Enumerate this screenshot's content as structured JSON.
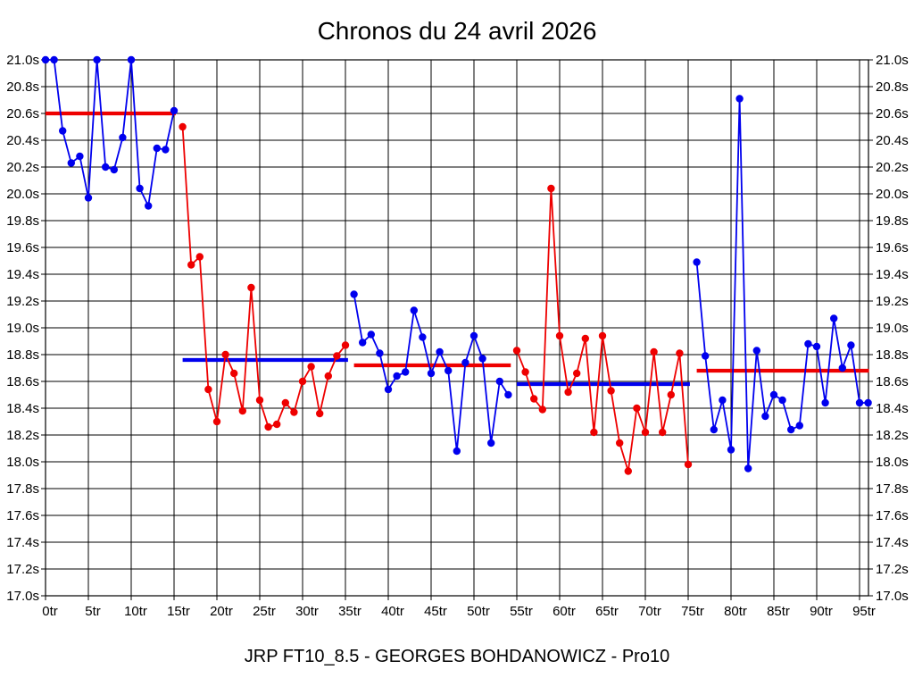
{
  "title": "Chronos du 24 avril 2026",
  "caption": "JRP FT10_8.5 - GEORGES BOHDANOWICZ - Pro10",
  "colors": {
    "blue_series": "#0000EE",
    "red_series": "#EE0000",
    "grid": "#000000",
    "background": "#FFFFFF"
  },
  "chart_data": {
    "type": "line",
    "title": "Chronos du 24 avril 2026",
    "xlabel": "",
    "ylabel": "",
    "x_unit": "tr",
    "y_unit": "s",
    "xlim": [
      0,
      96.25
    ],
    "ylim": [
      17.0,
      21.0
    ],
    "grid": true,
    "legend": "none",
    "x_ticks": {
      "values": [
        0,
        5,
        10,
        15,
        20,
        25,
        30,
        35,
        40,
        45,
        50,
        55,
        60,
        65,
        70,
        75,
        80,
        85,
        90,
        95
      ],
      "labels": [
        "0tr",
        "5tr",
        "10tr",
        "15tr",
        "20tr",
        "25tr",
        "30tr",
        "35tr",
        "40tr",
        "45tr",
        "50tr",
        "55tr",
        "60tr",
        "65tr",
        "70tr",
        "75tr",
        "80tr",
        "85tr",
        "90tr",
        "95tr"
      ]
    },
    "y_ticks": {
      "values": [
        21.0,
        20.8,
        20.6,
        20.4,
        20.2,
        20.0,
        19.8,
        19.6,
        19.4,
        19.2,
        19.0,
        18.8,
        18.6,
        18.4,
        18.2,
        18.0,
        17.8,
        17.6,
        17.4,
        17.2,
        17.0
      ],
      "labels": [
        "21.0s",
        "20.8s",
        "20.6s",
        "20.4s",
        "20.2s",
        "20.0s",
        "19.8s",
        "19.6s",
        "19.4s",
        "19.2s",
        "19.0s",
        "18.8s",
        "18.6s",
        "18.4s",
        "18.2s",
        "18.0s",
        "17.8s",
        "17.6s",
        "17.4s",
        "17.2s",
        "17.0s"
      ]
    },
    "series": [
      {
        "name": "run-1",
        "color": "#0000EE",
        "start_x": 0,
        "y": [
          21.0,
          21.0,
          20.47,
          20.23,
          20.28,
          19.97,
          21.0,
          20.2,
          20.18,
          20.42,
          21.0,
          20.04,
          19.91,
          20.34,
          20.33,
          20.62
        ],
        "mean_line": {
          "color": "#EE0000",
          "y": 20.6,
          "x_from": 0,
          "x_to": 15.2
        }
      },
      {
        "name": "run-2",
        "color": "#EE0000",
        "start_x": 16,
        "y": [
          20.5,
          19.47,
          19.53,
          18.54,
          18.3,
          18.8,
          18.66,
          18.38,
          19.3,
          18.46,
          18.26,
          18.28,
          18.44,
          18.37,
          18.6,
          18.71,
          18.36,
          18.64,
          18.79,
          18.87
        ],
        "mean_line": {
          "color": "#0000EE",
          "y": 18.76,
          "x_from": 16,
          "x_to": 35.3
        }
      },
      {
        "name": "run-3",
        "color": "#0000EE",
        "start_x": 36,
        "y": [
          19.25,
          18.89,
          18.95,
          18.81,
          18.54,
          18.64,
          18.67,
          19.13,
          18.93,
          18.66,
          18.82,
          18.68,
          18.08,
          18.74,
          18.94,
          18.77,
          18.14,
          18.6,
          18.5
        ],
        "mean_line": {
          "color": "#EE0000",
          "y": 18.72,
          "x_from": 36,
          "x_to": 54.3
        }
      },
      {
        "name": "run-4",
        "color": "#EE0000",
        "start_x": 55,
        "y": [
          18.83,
          18.67,
          18.47,
          18.39,
          20.04,
          18.94,
          18.52,
          18.66,
          18.92,
          18.22,
          18.94,
          18.53,
          18.14,
          17.93,
          18.4,
          18.22,
          18.82,
          18.22,
          18.5,
          18.81,
          17.98
        ],
        "mean_line": {
          "color": "#0000EE",
          "y": 18.58,
          "x_from": 55,
          "x_to": 75.2
        }
      },
      {
        "name": "run-5",
        "color": "#0000EE",
        "start_x": 76,
        "y": [
          19.49,
          18.79,
          18.24,
          18.46,
          18.09,
          20.71,
          17.95,
          18.83,
          18.34,
          18.5,
          18.46,
          18.24,
          18.27,
          18.88,
          18.86,
          18.44,
          19.07,
          18.7,
          18.87,
          18.44,
          18.44
        ],
        "mean_line": {
          "color": "#EE0000",
          "y": 18.68,
          "x_from": 76,
          "x_to": 96.1
        }
      }
    ]
  }
}
